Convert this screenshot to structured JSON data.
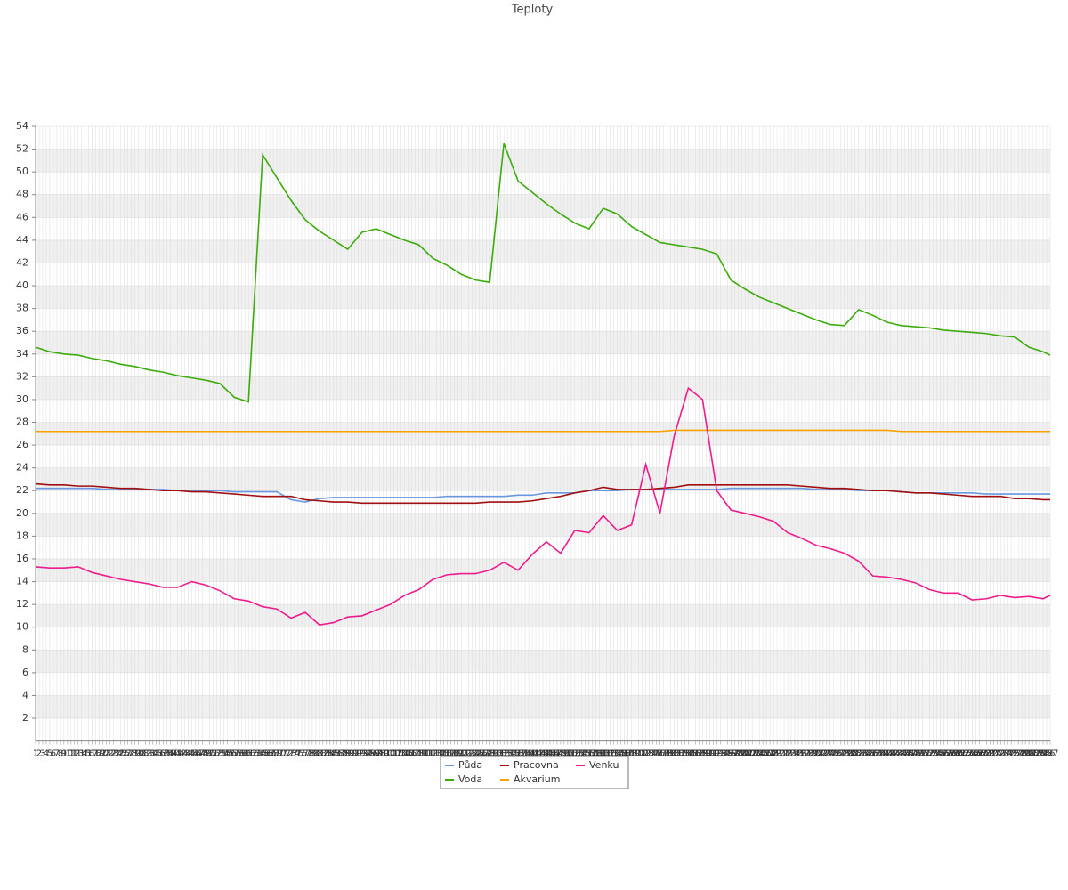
{
  "chart_data": {
    "type": "line",
    "title": "Teploty",
    "xlim": [
      1,
      287
    ],
    "ylim": [
      0,
      54
    ],
    "yticks": [
      2,
      4,
      6,
      8,
      10,
      12,
      14,
      16,
      18,
      20,
      22,
      24,
      26,
      28,
      30,
      32,
      34,
      36,
      38,
      40,
      42,
      44,
      46,
      48,
      50,
      52,
      54
    ],
    "xticks": [
      1,
      2,
      3,
      4,
      5,
      6,
      7,
      8,
      9,
      10,
      11,
      12,
      13,
      14,
      15,
      16,
      17,
      18,
      19,
      20,
      21,
      22,
      23,
      24,
      25,
      26,
      27,
      28,
      29,
      30,
      31,
      32,
      33,
      34,
      35,
      36,
      37,
      38,
      39,
      40,
      41,
      42,
      43,
      44,
      45,
      46,
      47,
      48,
      49,
      50,
      51,
      52,
      53,
      54,
      55,
      56,
      57,
      58,
      59,
      60,
      61,
      62,
      63,
      64,
      65,
      66,
      67,
      68,
      69,
      70,
      71,
      72,
      73,
      74,
      75,
      76,
      77,
      78,
      79,
      80,
      81,
      82,
      83,
      84,
      85,
      86,
      87,
      88,
      89,
      90,
      91,
      92,
      93,
      94,
      95,
      96,
      97,
      98,
      99,
      100,
      101,
      102,
      103,
      104,
      105,
      106,
      107,
      108,
      109,
      110,
      111,
      112,
      113,
      114,
      115,
      116,
      117,
      118,
      119,
      120,
      121,
      122,
      123,
      124,
      125,
      126,
      127,
      128,
      129,
      130,
      131,
      132,
      133,
      134,
      135,
      136,
      137,
      138,
      139,
      140,
      141,
      142,
      143,
      144,
      145,
      146,
      147,
      148,
      149,
      150,
      151,
      152,
      153,
      154,
      155,
      156,
      157,
      158,
      159,
      160,
      161,
      162,
      163,
      164,
      165,
      166,
      167,
      168,
      169,
      170,
      171,
      172,
      173,
      174,
      175,
      176,
      177,
      178,
      179,
      180,
      181,
      182,
      183,
      184,
      185,
      186,
      187,
      188,
      189,
      190,
      191,
      192,
      193,
      194,
      195,
      196,
      197,
      198,
      199,
      200,
      201,
      202,
      203,
      204,
      205,
      206,
      207,
      208,
      209,
      210,
      211,
      212,
      213,
      214,
      215,
      216,
      217,
      218,
      219,
      220,
      221,
      222,
      223,
      224,
      225,
      226,
      227,
      228,
      229,
      230,
      231,
      232,
      233,
      234,
      235,
      236,
      237,
      238,
      239,
      240,
      241,
      242,
      243,
      244,
      245,
      246,
      247,
      248,
      249,
      250,
      251,
      252,
      253,
      254,
      255,
      256,
      257,
      258,
      259,
      260,
      261,
      262,
      263,
      264,
      265,
      266,
      267,
      268,
      269,
      270,
      271,
      272,
      273,
      274,
      275,
      276,
      277,
      278,
      279,
      280,
      281,
      282,
      283,
      284,
      285,
      286,
      287
    ],
    "grid": true,
    "x": [
      1,
      5,
      9,
      13,
      17,
      21,
      25,
      29,
      33,
      37,
      41,
      45,
      49,
      53,
      57,
      61,
      65,
      69,
      73,
      77,
      81,
      85,
      89,
      93,
      97,
      101,
      105,
      109,
      113,
      117,
      121,
      125,
      129,
      133,
      137,
      141,
      145,
      149,
      153,
      157,
      161,
      165,
      169,
      173,
      177,
      181,
      185,
      189,
      193,
      197,
      201,
      205,
      209,
      213,
      217,
      221,
      225,
      229,
      233,
      237,
      241,
      245,
      249,
      253,
      257,
      261,
      265,
      269,
      273,
      277,
      281,
      285,
      287
    ],
    "series": [
      {
        "name": "Půda",
        "color": "#6a98e0",
        "values": [
          22.2,
          22.2,
          22.2,
          22.2,
          22.2,
          22.1,
          22.1,
          22.1,
          22.1,
          22.1,
          22.0,
          22.0,
          22.0,
          22.0,
          21.9,
          21.9,
          21.9,
          21.9,
          21.2,
          21.0,
          21.3,
          21.4,
          21.4,
          21.4,
          21.4,
          21.4,
          21.4,
          21.4,
          21.4,
          21.5,
          21.5,
          21.5,
          21.5,
          21.5,
          21.6,
          21.6,
          21.8,
          21.8,
          21.8,
          22.0,
          22.0,
          22.0,
          22.1,
          22.1,
          22.1,
          22.1,
          22.1,
          22.1,
          22.1,
          22.2,
          22.2,
          22.2,
          22.2,
          22.2,
          22.2,
          22.1,
          22.1,
          22.1,
          22.0,
          22.0,
          22.0,
          21.9,
          21.8,
          21.8,
          21.8,
          21.8,
          21.8,
          21.7,
          21.7,
          21.7,
          21.7,
          21.7,
          21.7
        ]
      },
      {
        "name": "Voda",
        "color": "#3cac0c",
        "values": [
          34.6,
          34.2,
          34.0,
          33.9,
          33.6,
          33.4,
          33.1,
          32.9,
          32.6,
          32.4,
          32.1,
          31.9,
          31.7,
          31.4,
          30.2,
          29.8,
          51.5,
          49.5,
          47.5,
          45.8,
          44.8,
          44.0,
          43.2,
          44.7,
          45.0,
          44.5,
          44.0,
          43.6,
          42.4,
          41.8,
          41.0,
          40.5,
          40.3,
          52.5,
          49.2,
          48.2,
          47.2,
          46.3,
          45.5,
          45.0,
          46.8,
          46.3,
          45.2,
          44.5,
          43.8,
          43.6,
          43.4,
          43.2,
          42.8,
          40.5,
          39.7,
          39.0,
          38.5,
          38.0,
          37.5,
          37.0,
          36.6,
          36.5,
          37.9,
          37.4,
          36.8,
          36.5,
          36.4,
          36.3,
          36.1,
          36.0,
          35.9,
          35.8,
          35.6,
          35.5,
          34.6,
          34.2,
          33.9
        ]
      },
      {
        "name": "Pracovna",
        "color": "#a01010",
        "values": [
          22.6,
          22.5,
          22.5,
          22.4,
          22.4,
          22.3,
          22.2,
          22.2,
          22.1,
          22.0,
          22.0,
          21.9,
          21.9,
          21.8,
          21.7,
          21.6,
          21.5,
          21.5,
          21.5,
          21.2,
          21.1,
          21.0,
          21.0,
          20.9,
          20.9,
          20.9,
          20.9,
          20.9,
          20.9,
          20.9,
          20.9,
          20.9,
          21.0,
          21.0,
          21.0,
          21.1,
          21.3,
          21.5,
          21.8,
          22.0,
          22.3,
          22.1,
          22.1,
          22.1,
          22.2,
          22.3,
          22.5,
          22.5,
          22.5,
          22.5,
          22.5,
          22.5,
          22.5,
          22.5,
          22.4,
          22.3,
          22.2,
          22.2,
          22.1,
          22.0,
          22.0,
          21.9,
          21.8,
          21.8,
          21.7,
          21.6,
          21.5,
          21.5,
          21.5,
          21.3,
          21.3,
          21.2,
          21.2
        ]
      },
      {
        "name": "Akvarium",
        "color": "#f7a200",
        "values": [
          27.2,
          27.2,
          27.2,
          27.2,
          27.2,
          27.2,
          27.2,
          27.2,
          27.2,
          27.2,
          27.2,
          27.2,
          27.2,
          27.2,
          27.2,
          27.2,
          27.2,
          27.2,
          27.2,
          27.2,
          27.2,
          27.2,
          27.2,
          27.2,
          27.2,
          27.2,
          27.2,
          27.2,
          27.2,
          27.2,
          27.2,
          27.2,
          27.2,
          27.2,
          27.2,
          27.2,
          27.2,
          27.2,
          27.2,
          27.2,
          27.2,
          27.2,
          27.2,
          27.2,
          27.2,
          27.3,
          27.3,
          27.3,
          27.3,
          27.3,
          27.3,
          27.3,
          27.3,
          27.3,
          27.3,
          27.3,
          27.3,
          27.3,
          27.3,
          27.3,
          27.3,
          27.2,
          27.2,
          27.2,
          27.2,
          27.2,
          27.2,
          27.2,
          27.2,
          27.2,
          27.2,
          27.2,
          27.2
        ]
      },
      {
        "name": "Venku",
        "color": "#ee1c8c",
        "values": [
          15.3,
          15.2,
          15.2,
          15.3,
          14.8,
          14.5,
          14.2,
          14.0,
          13.8,
          13.5,
          13.5,
          14.0,
          13.7,
          13.2,
          12.5,
          12.3,
          11.8,
          11.6,
          10.8,
          11.3,
          10.2,
          10.4,
          10.9,
          11.0,
          11.5,
          12.0,
          12.8,
          13.3,
          14.2,
          14.6,
          14.7,
          14.7,
          15.0,
          15.7,
          15.0,
          16.4,
          17.5,
          16.5,
          18.5,
          18.3,
          19.8,
          18.5,
          19.0,
          24.3,
          20.0,
          26.8,
          31.0,
          30.0,
          22.0,
          20.3,
          20.0,
          19.7,
          19.3,
          18.3,
          17.8,
          17.2,
          16.9,
          16.5,
          15.8,
          14.5,
          14.4,
          14.2,
          13.9,
          13.3,
          13.0,
          13.0,
          12.4,
          12.5,
          12.8,
          12.6,
          12.7,
          12.5,
          12.8
        ]
      }
    ]
  }
}
